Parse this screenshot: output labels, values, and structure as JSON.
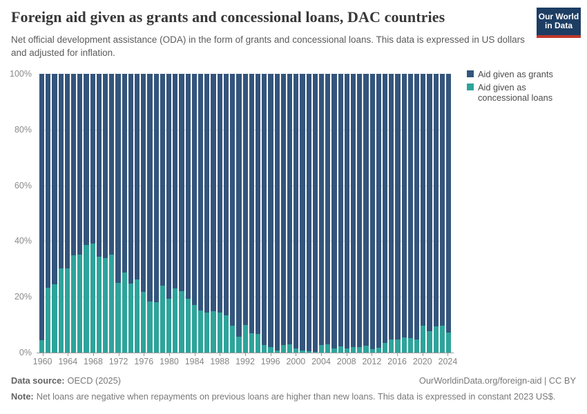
{
  "header": {
    "title": "Foreign aid given as grants and concessional loans, DAC countries",
    "subtitle": "Net official development assistance (ODA) in the form of grants and concessional loans. This data is expressed in US dollars and adjusted for inflation.",
    "logo": {
      "line1": "Our World",
      "line2": "in Data"
    }
  },
  "legend": {
    "items": [
      {
        "label": "Aid given as grants",
        "color": "#34557C"
      },
      {
        "label": "Aid given as concessional loans",
        "color": "#2EA49B"
      }
    ]
  },
  "chart_data": {
    "type": "bar",
    "stacked": true,
    "unit": "%",
    "title": "Foreign aid given as grants and concessional loans, DAC countries",
    "xlabel": "",
    "ylabel": "",
    "ylim": [
      0,
      100
    ],
    "grid": true,
    "legend_position": "right",
    "x": [
      1960,
      1961,
      1962,
      1963,
      1964,
      1965,
      1966,
      1967,
      1968,
      1969,
      1970,
      1971,
      1972,
      1973,
      1974,
      1975,
      1976,
      1977,
      1978,
      1979,
      1980,
      1981,
      1982,
      1983,
      1984,
      1985,
      1986,
      1987,
      1988,
      1989,
      1990,
      1991,
      1992,
      1993,
      1994,
      1995,
      1996,
      1997,
      1998,
      1999,
      2000,
      2001,
      2002,
      2003,
      2004,
      2005,
      2006,
      2007,
      2008,
      2009,
      2010,
      2011,
      2012,
      2013,
      2014,
      2015,
      2016,
      2017,
      2018,
      2019,
      2020,
      2021,
      2022,
      2023,
      2024
    ],
    "series": [
      {
        "name": "Aid given as grants",
        "color": "#34557C",
        "values": [
          95.5,
          76.7,
          75.5,
          69.7,
          69.7,
          65.2,
          64.8,
          61.5,
          60.9,
          65.6,
          66.0,
          64.8,
          75.0,
          71.2,
          75.3,
          73.8,
          78.2,
          81.8,
          82.0,
          76.0,
          80.7,
          77.0,
          77.9,
          80.7,
          83.0,
          84.8,
          85.6,
          85.1,
          85.7,
          86.6,
          90.3,
          94.4,
          90.0,
          93.0,
          93.2,
          97.2,
          98.1,
          99.2,
          97.3,
          97.1,
          98.5,
          99.2,
          99.4,
          99.7,
          97.3,
          97.1,
          98.5,
          97.7,
          98.4,
          98.1,
          97.9,
          97.5,
          98.8,
          98.3,
          96.6,
          95.2,
          95.4,
          94.5,
          94.7,
          95.4,
          90.4,
          92.4,
          90.7,
          90.4,
          92.9
        ]
      },
      {
        "name": "Aid given as concessional loans",
        "color": "#2EA49B",
        "values": [
          4.5,
          23.3,
          24.5,
          30.3,
          30.3,
          34.8,
          35.2,
          38.5,
          39.1,
          34.4,
          34.0,
          35.2,
          25.0,
          28.8,
          24.7,
          26.2,
          21.8,
          18.2,
          18.0,
          24.0,
          19.3,
          23.0,
          22.1,
          19.3,
          17.0,
          15.2,
          14.4,
          14.9,
          14.3,
          13.4,
          9.7,
          5.6,
          10.0,
          7.0,
          6.8,
          2.8,
          1.9,
          0.8,
          2.7,
          2.9,
          1.5,
          0.8,
          0.6,
          0.3,
          2.7,
          2.9,
          1.5,
          2.3,
          1.6,
          1.9,
          2.1,
          2.5,
          1.2,
          1.7,
          3.4,
          4.8,
          4.6,
          5.5,
          5.3,
          4.6,
          9.6,
          7.6,
          9.3,
          9.6,
          7.1
        ]
      }
    ],
    "yticks": [
      0,
      20,
      40,
      60,
      80,
      100
    ],
    "ytick_labels": [
      "0%",
      "20%",
      "40%",
      "60%",
      "80%",
      "100%"
    ],
    "xticks": [
      1960,
      1964,
      1968,
      1972,
      1976,
      1980,
      1984,
      1988,
      1992,
      1996,
      2000,
      2004,
      2008,
      2012,
      2016,
      2020,
      2024
    ]
  },
  "footer": {
    "source_label": "Data source:",
    "source_value": "OECD (2025)",
    "link": "OurWorldinData.org/foreign-aid | CC BY",
    "note_label": "Note:",
    "note_value": "Net loans are negative when repayments on previous loans are higher than new loans. This data is expressed in constant 2023 US$."
  }
}
